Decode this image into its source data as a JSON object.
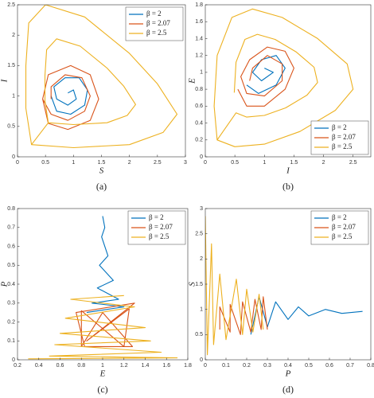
{
  "chart_data": [
    {
      "type": "line",
      "caption": "(a)",
      "xlabel": "S",
      "ylabel": "I",
      "xlim": [
        0,
        3
      ],
      "ylim": [
        0,
        2.5
      ],
      "xticks": [
        0,
        0.5,
        1,
        1.5,
        2,
        2.5,
        3
      ],
      "yticks": [
        0,
        0.5,
        1,
        1.5,
        2,
        2.5
      ],
      "legend": "top-right",
      "series": [
        {
          "name": "β = 2",
          "color": "#0072bd",
          "x": [
            0.6,
            0.7,
            0.95,
            1.2,
            1.25,
            1.1,
            0.85,
            0.65,
            0.7,
            0.9,
            1.05,
            1.0,
            0.9
          ],
          "values": [
            1.0,
            0.75,
            0.7,
            0.85,
            1.1,
            1.3,
            1.3,
            1.15,
            0.95,
            0.85,
            0.95,
            1.1,
            1.05
          ]
        },
        {
          "name": "β = 2.07",
          "color": "#d95319",
          "x": [
            0.45,
            0.55,
            0.9,
            1.3,
            1.45,
            1.3,
            0.95,
            0.55,
            0.45,
            0.6,
            0.9,
            1.2,
            1.3,
            1.15,
            0.85,
            0.6,
            0.6
          ],
          "values": [
            0.95,
            0.55,
            0.45,
            0.6,
            0.95,
            1.35,
            1.5,
            1.35,
            0.95,
            0.7,
            0.6,
            0.75,
            1.0,
            1.3,
            1.35,
            1.15,
            0.95
          ]
        },
        {
          "name": "β = 2.5",
          "color": "#edb120",
          "x": [
            0.25,
            1,
            2,
            2.6,
            2.85,
            2.5,
            2,
            1.2,
            0.5,
            0.2,
            0.15,
            0.15,
            0.25,
            0.55,
            1,
            1.6,
            1.96,
            2.11,
            1.9,
            1.6,
            1.12,
            0.7,
            0.52,
            0.49,
            0.49,
            0.55
          ],
          "values": [
            0.2,
            0.15,
            0.2,
            0.4,
            0.7,
            1.2,
            1.7,
            2.3,
            2.5,
            2.2,
            1.5,
            0.8,
            0.2,
            0.56,
            0.53,
            0.56,
            0.68,
            0.86,
            1.16,
            1.46,
            1.82,
            1.94,
            1.76,
            1.34,
            0.92,
            0.56
          ]
        }
      ]
    },
    {
      "type": "line",
      "caption": "(b)",
      "xlabel": "I",
      "ylabel": "E",
      "xlim": [
        0,
        2.8
      ],
      "ylim": [
        0,
        1.8
      ],
      "xticks": [
        0,
        0.5,
        1,
        1.5,
        2,
        2.5
      ],
      "yticks": [
        0,
        0.2,
        0.4,
        0.6,
        0.8,
        1,
        1.2,
        1.4,
        1.6,
        1.8
      ],
      "legend": "bottom-right",
      "series": [
        {
          "name": "β = 2",
          "color": "#0072bd",
          "x": [
            0.7,
            0.9,
            1.2,
            1.35,
            1.2,
            0.95,
            0.8,
            0.95,
            1.15,
            1.0
          ],
          "values": [
            0.85,
            0.75,
            0.85,
            1.05,
            1.2,
            1.15,
            1.0,
            0.9,
            1.0,
            1.05
          ]
        },
        {
          "name": "β = 2.07",
          "color": "#d95319",
          "x": [
            0.55,
            0.7,
            1.0,
            1.35,
            1.5,
            1.35,
            1.05,
            0.75,
            0.6,
            0.7,
            1.0,
            1.3,
            1.3,
            1.05,
            0.8,
            0.75
          ],
          "values": [
            0.8,
            0.6,
            0.6,
            0.8,
            1.05,
            1.25,
            1.3,
            1.15,
            0.95,
            0.75,
            0.72,
            0.9,
            1.1,
            1.2,
            1.05,
            0.9
          ]
        },
        {
          "name": "β = 2.5",
          "color": "#edb120",
          "x": [
            0.2,
            0.5,
            1.0,
            1.6,
            2.2,
            2.5,
            2.4,
            1.9,
            1.3,
            0.8,
            0.45,
            0.2,
            0.15,
            0.2,
            0.52,
            0.7,
            1.0,
            1.36,
            1.72,
            1.9,
            1.84,
            1.54,
            1.18,
            0.88,
            0.67,
            0.52,
            0.49
          ],
          "values": [
            0.2,
            0.12,
            0.15,
            0.3,
            0.55,
            0.8,
            1.1,
            1.4,
            1.65,
            1.75,
            1.65,
            1.2,
            0.6,
            0.2,
            0.52,
            0.47,
            0.49,
            0.58,
            0.73,
            0.88,
            1.06,
            1.24,
            1.39,
            1.45,
            1.39,
            1.12,
            0.76
          ]
        }
      ]
    },
    {
      "type": "line",
      "caption": "(c)",
      "xlabel": "E",
      "ylabel": "P",
      "xlim": [
        0.2,
        1.8
      ],
      "ylim": [
        0,
        0.8
      ],
      "xticks": [
        0.2,
        0.4,
        0.6,
        0.8,
        1,
        1.2,
        1.4,
        1.6,
        1.8
      ],
      "yticks": [
        0,
        0.1,
        0.2,
        0.3,
        0.4,
        0.5,
        0.6,
        0.7,
        0.8
      ],
      "legend": "top-right",
      "series": [
        {
          "name": "β = 2",
          "color": "#0072bd",
          "x": [
            0.85,
            1.2,
            0.9,
            1.15,
            0.95,
            1.1,
            0.97,
            1.05,
            0.99,
            1.02,
            1.0
          ],
          "values": [
            0.25,
            0.28,
            0.3,
            0.32,
            0.38,
            0.42,
            0.5,
            0.55,
            0.65,
            0.7,
            0.76
          ]
        },
        {
          "name": "β = 2.07",
          "color": "#d95319",
          "x": [
            0.8,
            0.8,
            1.2,
            1.25,
            0.85,
            1.3,
            0.75,
            0.83,
            1.28,
            1.0,
            0.8
          ],
          "values": [
            0.07,
            0.26,
            0.07,
            0.27,
            0.1,
            0.3,
            0.25,
            0.07,
            0.07,
            0.25,
            0.07
          ]
        },
        {
          "name": "β = 2.5",
          "color": "#edb120",
          "x": [
            0.3,
            1.7,
            0.5,
            1.55,
            0.55,
            1.45,
            0.6,
            1.4,
            0.65,
            1.3,
            0.7,
            1.2
          ],
          "values": [
            0.005,
            0.01,
            0.02,
            0.04,
            0.08,
            0.1,
            0.14,
            0.17,
            0.22,
            0.28,
            0.32,
            0.34
          ]
        }
      ]
    },
    {
      "type": "line",
      "caption": "(d)",
      "xlabel": "P",
      "ylabel": "S",
      "xlim": [
        0,
        0.8
      ],
      "ylim": [
        0,
        3
      ],
      "xticks": [
        0,
        0.1,
        0.2,
        0.3,
        0.4,
        0.5,
        0.6,
        0.7,
        0.8
      ],
      "yticks": [
        0,
        0.5,
        1,
        1.5,
        2,
        2.5,
        3
      ],
      "legend": "top-right",
      "series": [
        {
          "name": "β = 2",
          "color": "#0072bd",
          "x": [
            0.22,
            0.26,
            0.3,
            0.34,
            0.4,
            0.45,
            0.5,
            0.58,
            0.66,
            0.76
          ],
          "values": [
            0.5,
            1.25,
            0.65,
            1.15,
            0.8,
            1.05,
            0.87,
            1.0,
            0.92,
            0.96
          ]
        },
        {
          "name": "β = 2.07",
          "color": "#d95319",
          "x": [
            0.07,
            0.07,
            0.12,
            0.12,
            0.17,
            0.18,
            0.22,
            0.24,
            0.27,
            0.28,
            0.3
          ],
          "values": [
            0.6,
            1.05,
            0.55,
            1.1,
            0.5,
            1.15,
            0.55,
            1.2,
            0.6,
            1.25,
            0.6
          ]
        },
        {
          "name": "β = 2.5",
          "color": "#edb120",
          "x": [
            0.0,
            0.01,
            0.03,
            0.04,
            0.07,
            0.1,
            0.15,
            0.18,
            0.2,
            0.23,
            0.26,
            0.28
          ],
          "values": [
            2.85,
            0.1,
            2.3,
            0.3,
            1.7,
            0.4,
            1.6,
            0.5,
            1.4,
            0.55,
            1.3,
            0.6
          ]
        }
      ]
    }
  ]
}
